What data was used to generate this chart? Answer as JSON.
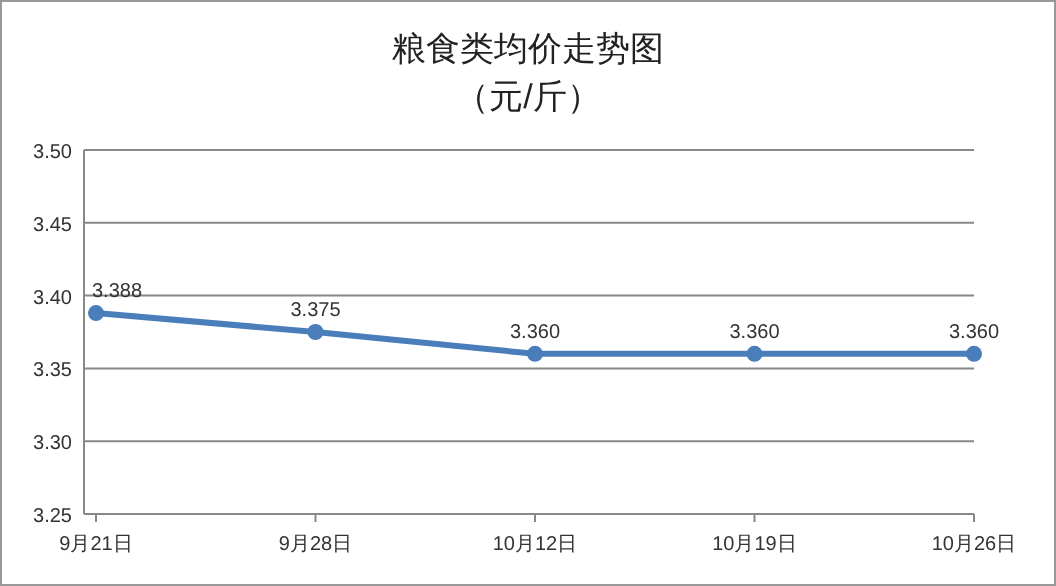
{
  "chart_data": {
    "type": "line",
    "title": "粮食类均价走势图",
    "subtitle": "（元/斤）",
    "categories": [
      "9月21日",
      "9月28日",
      "10月12日",
      "10月19日",
      "10月26日"
    ],
    "series": [
      {
        "color": "#4a7ebb",
        "values": [
          3.388,
          3.375,
          3.36,
          3.36,
          3.36
        ],
        "value_labels": [
          "3.388",
          "3.375",
          "3.360",
          "3.360",
          "3.360"
        ]
      }
    ],
    "ylim": [
      3.25,
      3.5
    ],
    "yticks": [
      {
        "value": 3.25,
        "label": "3.25"
      },
      {
        "value": 3.3,
        "label": "3.30"
      },
      {
        "value": 3.35,
        "label": "3.35"
      },
      {
        "value": 3.4,
        "label": "3.40"
      },
      {
        "value": 3.45,
        "label": "3.45"
      },
      {
        "value": 3.5,
        "label": "3.50"
      }
    ],
    "grid": "y",
    "marker": "circle",
    "line_style": "solid"
  }
}
